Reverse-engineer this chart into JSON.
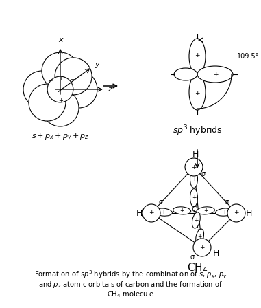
{
  "bg_color": "#ffffff",
  "fig_width": 3.81,
  "fig_height": 4.48,
  "dpi": 100,
  "caption_line1": "Formation of $sp^3$ hybrids by the combination of $s$, $p_x$, $p_y$",
  "caption_line2": "and $p_z$ atomic orbitals of carbon and the formation of",
  "caption_line3": "$\\mathrm{CH_4}$ molecule",
  "sp3_label": "$sp^3$ hybrids",
  "angle_label": "109.5°",
  "ch4_label": "$\\mathrm{CH_4}$"
}
